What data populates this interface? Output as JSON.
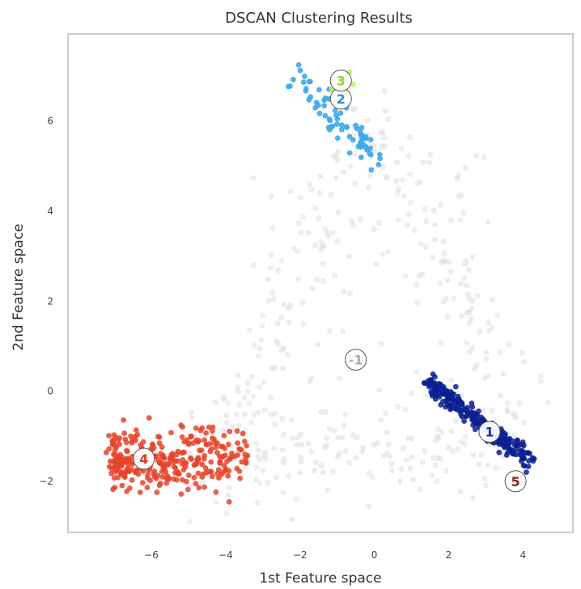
{
  "chart_data": {
    "type": "scatter",
    "title": "DSCAN Clustering Results",
    "xlabel": "1st Feature space",
    "ylabel": "2nd Feature space",
    "xlim": [
      -8.2,
      5.3
    ],
    "ylim": [
      -3.1,
      7.9
    ],
    "xticks": [
      -6,
      -4,
      -2,
      0,
      2,
      4
    ],
    "yticks": [
      -2,
      0,
      2,
      4,
      6
    ],
    "grid": false,
    "clusters": [
      {
        "label": "-1",
        "center": [
          -0.5,
          0.7
        ],
        "color": "#d9d9d9",
        "label_color": "#aaaaaa",
        "count": 420,
        "opacity": 0.45
      },
      {
        "label": "1",
        "center": [
          3.1,
          -0.9
        ],
        "color": "#0a1f8f",
        "label_color": "#1f2fa0",
        "count": 260,
        "opacity": 0.85
      },
      {
        "label": "2",
        "center": [
          -0.9,
          6.5
        ],
        "color": "#3ea8ec",
        "label_color": "#2d8fd0",
        "count": 70,
        "opacity": 0.9
      },
      {
        "label": "3",
        "center": [
          -0.9,
          6.9
        ],
        "color": "#b9f560",
        "label_color": "#8ed13a",
        "count": 10,
        "opacity": 0.9
      },
      {
        "label": "4",
        "center": [
          -6.2,
          -1.5
        ],
        "color": "#e8442a",
        "label_color": "#d93b23",
        "count": 320,
        "opacity": 0.85
      },
      {
        "label": "5",
        "center": [
          3.8,
          -2.0
        ],
        "color": "#7a1f1f",
        "label_color": "#8a2323",
        "count": 10,
        "opacity": 0.9
      }
    ]
  }
}
